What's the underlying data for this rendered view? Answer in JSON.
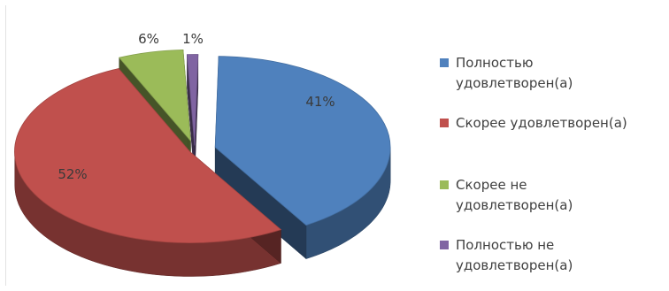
{
  "chart_data": {
    "type": "pie",
    "variant": "3d-exploded",
    "categories": [
      "Полностью удовлетворен(а)",
      "Скорее удовлетворен(а)",
      "Скорее не удовлетворен(а)",
      "Полностью не удовлетворен(а)"
    ],
    "values": [
      41,
      52,
      6,
      1
    ],
    "data_labels": [
      "41%",
      "52%",
      "6%",
      "1%"
    ],
    "colors": [
      "#4F81BD",
      "#C0504D",
      "#9BBB59",
      "#8064A2"
    ],
    "legend": {
      "position": "right",
      "items": [
        {
          "label": "Полностью\nудовлетворен(а)",
          "color": "#4F81BD"
        },
        {
          "label": "Скорее удовлетворен(а)",
          "color": "#C0504D"
        },
        {
          "label": "Скорее не\nудовлетворен(а)",
          "color": "#9BBB59"
        },
        {
          "label": "Полностью не\nудовлетворен(а)",
          "color": "#8064A2"
        }
      ]
    }
  }
}
